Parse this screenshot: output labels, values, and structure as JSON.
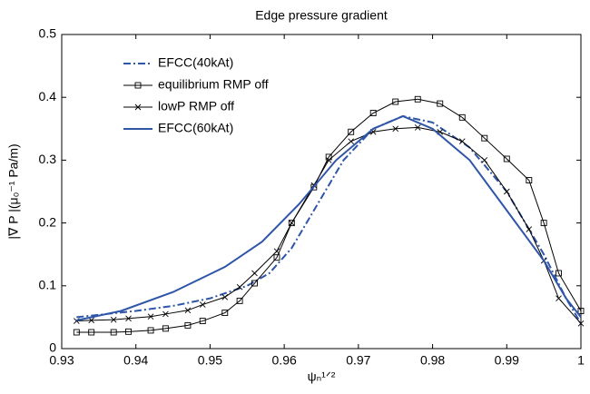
{
  "chart_data": {
    "type": "line",
    "title": "Edge  pressure gradient",
    "xlabel": "ψₙ¹ᐟ²",
    "ylabel": "|∇ P |(μ₀⁻¹ Pa/m)",
    "xlim": [
      0.93,
      1
    ],
    "xticks": [
      0.93,
      0.94,
      0.95,
      0.96,
      0.97,
      0.98,
      0.99,
      1
    ],
    "ylim": [
      0,
      0.5
    ],
    "yticks": [
      0,
      0.1,
      0.2,
      0.3,
      0.4,
      0.5
    ],
    "legend": "upper left",
    "series": [
      {
        "name": "EFCC(40kAt)",
        "color": "#2f55a8",
        "dash": "dashdot",
        "marker": "none",
        "x": [
          0.932,
          0.94,
          0.945,
          0.95,
          0.955,
          0.958,
          0.961,
          0.963,
          0.966,
          0.968,
          0.972,
          0.976,
          0.98,
          0.985,
          0.99,
          0.995,
          0.998,
          1
        ],
        "values": [
          0.05,
          0.06,
          0.068,
          0.08,
          0.1,
          0.12,
          0.16,
          0.2,
          0.26,
          0.3,
          0.35,
          0.37,
          0.36,
          0.32,
          0.25,
          0.15,
          0.08,
          0.04
        ]
      },
      {
        "name": "equilibrium RMP off",
        "color": "#000000",
        "dash": "solid",
        "marker": "square",
        "x": [
          0.932,
          0.934,
          0.937,
          0.939,
          0.942,
          0.944,
          0.947,
          0.949,
          0.952,
          0.954,
          0.956,
          0.959,
          0.961,
          0.964,
          0.966,
          0.969,
          0.972,
          0.975,
          0.978,
          0.981,
          0.984,
          0.987,
          0.99,
          0.993,
          0.995,
          0.997,
          1
        ],
        "values": [
          0.026,
          0.026,
          0.026,
          0.027,
          0.029,
          0.032,
          0.037,
          0.044,
          0.057,
          0.076,
          0.104,
          0.145,
          0.2,
          0.257,
          0.305,
          0.345,
          0.375,
          0.393,
          0.397,
          0.39,
          0.368,
          0.335,
          0.302,
          0.268,
          0.2,
          0.12,
          0.06
        ]
      },
      {
        "name": "lowP RMP off",
        "color": "#000000",
        "dash": "solid",
        "marker": "x",
        "x": [
          0.932,
          0.934,
          0.937,
          0.939,
          0.942,
          0.944,
          0.947,
          0.949,
          0.952,
          0.954,
          0.956,
          0.959,
          0.961,
          0.964,
          0.966,
          0.969,
          0.972,
          0.975,
          0.978,
          0.981,
          0.984,
          0.987,
          0.99,
          0.993,
          0.995,
          0.997,
          1
        ],
        "values": [
          0.044,
          0.045,
          0.046,
          0.048,
          0.051,
          0.055,
          0.061,
          0.07,
          0.082,
          0.098,
          0.12,
          0.155,
          0.2,
          0.26,
          0.3,
          0.33,
          0.345,
          0.35,
          0.352,
          0.345,
          0.33,
          0.3,
          0.25,
          0.19,
          0.14,
          0.08,
          0.04
        ]
      },
      {
        "name": "EFCC(60kAt)",
        "color": "#2f55a8",
        "dash": "solid",
        "marker": "none",
        "x": [
          0.932,
          0.938,
          0.945,
          0.952,
          0.957,
          0.962,
          0.967,
          0.972,
          0.976,
          0.98,
          0.985,
          0.99,
          0.995,
          0.998,
          1
        ],
        "values": [
          0.045,
          0.06,
          0.09,
          0.13,
          0.17,
          0.23,
          0.3,
          0.35,
          0.37,
          0.35,
          0.3,
          0.22,
          0.14,
          0.08,
          0.05
        ]
      }
    ]
  }
}
